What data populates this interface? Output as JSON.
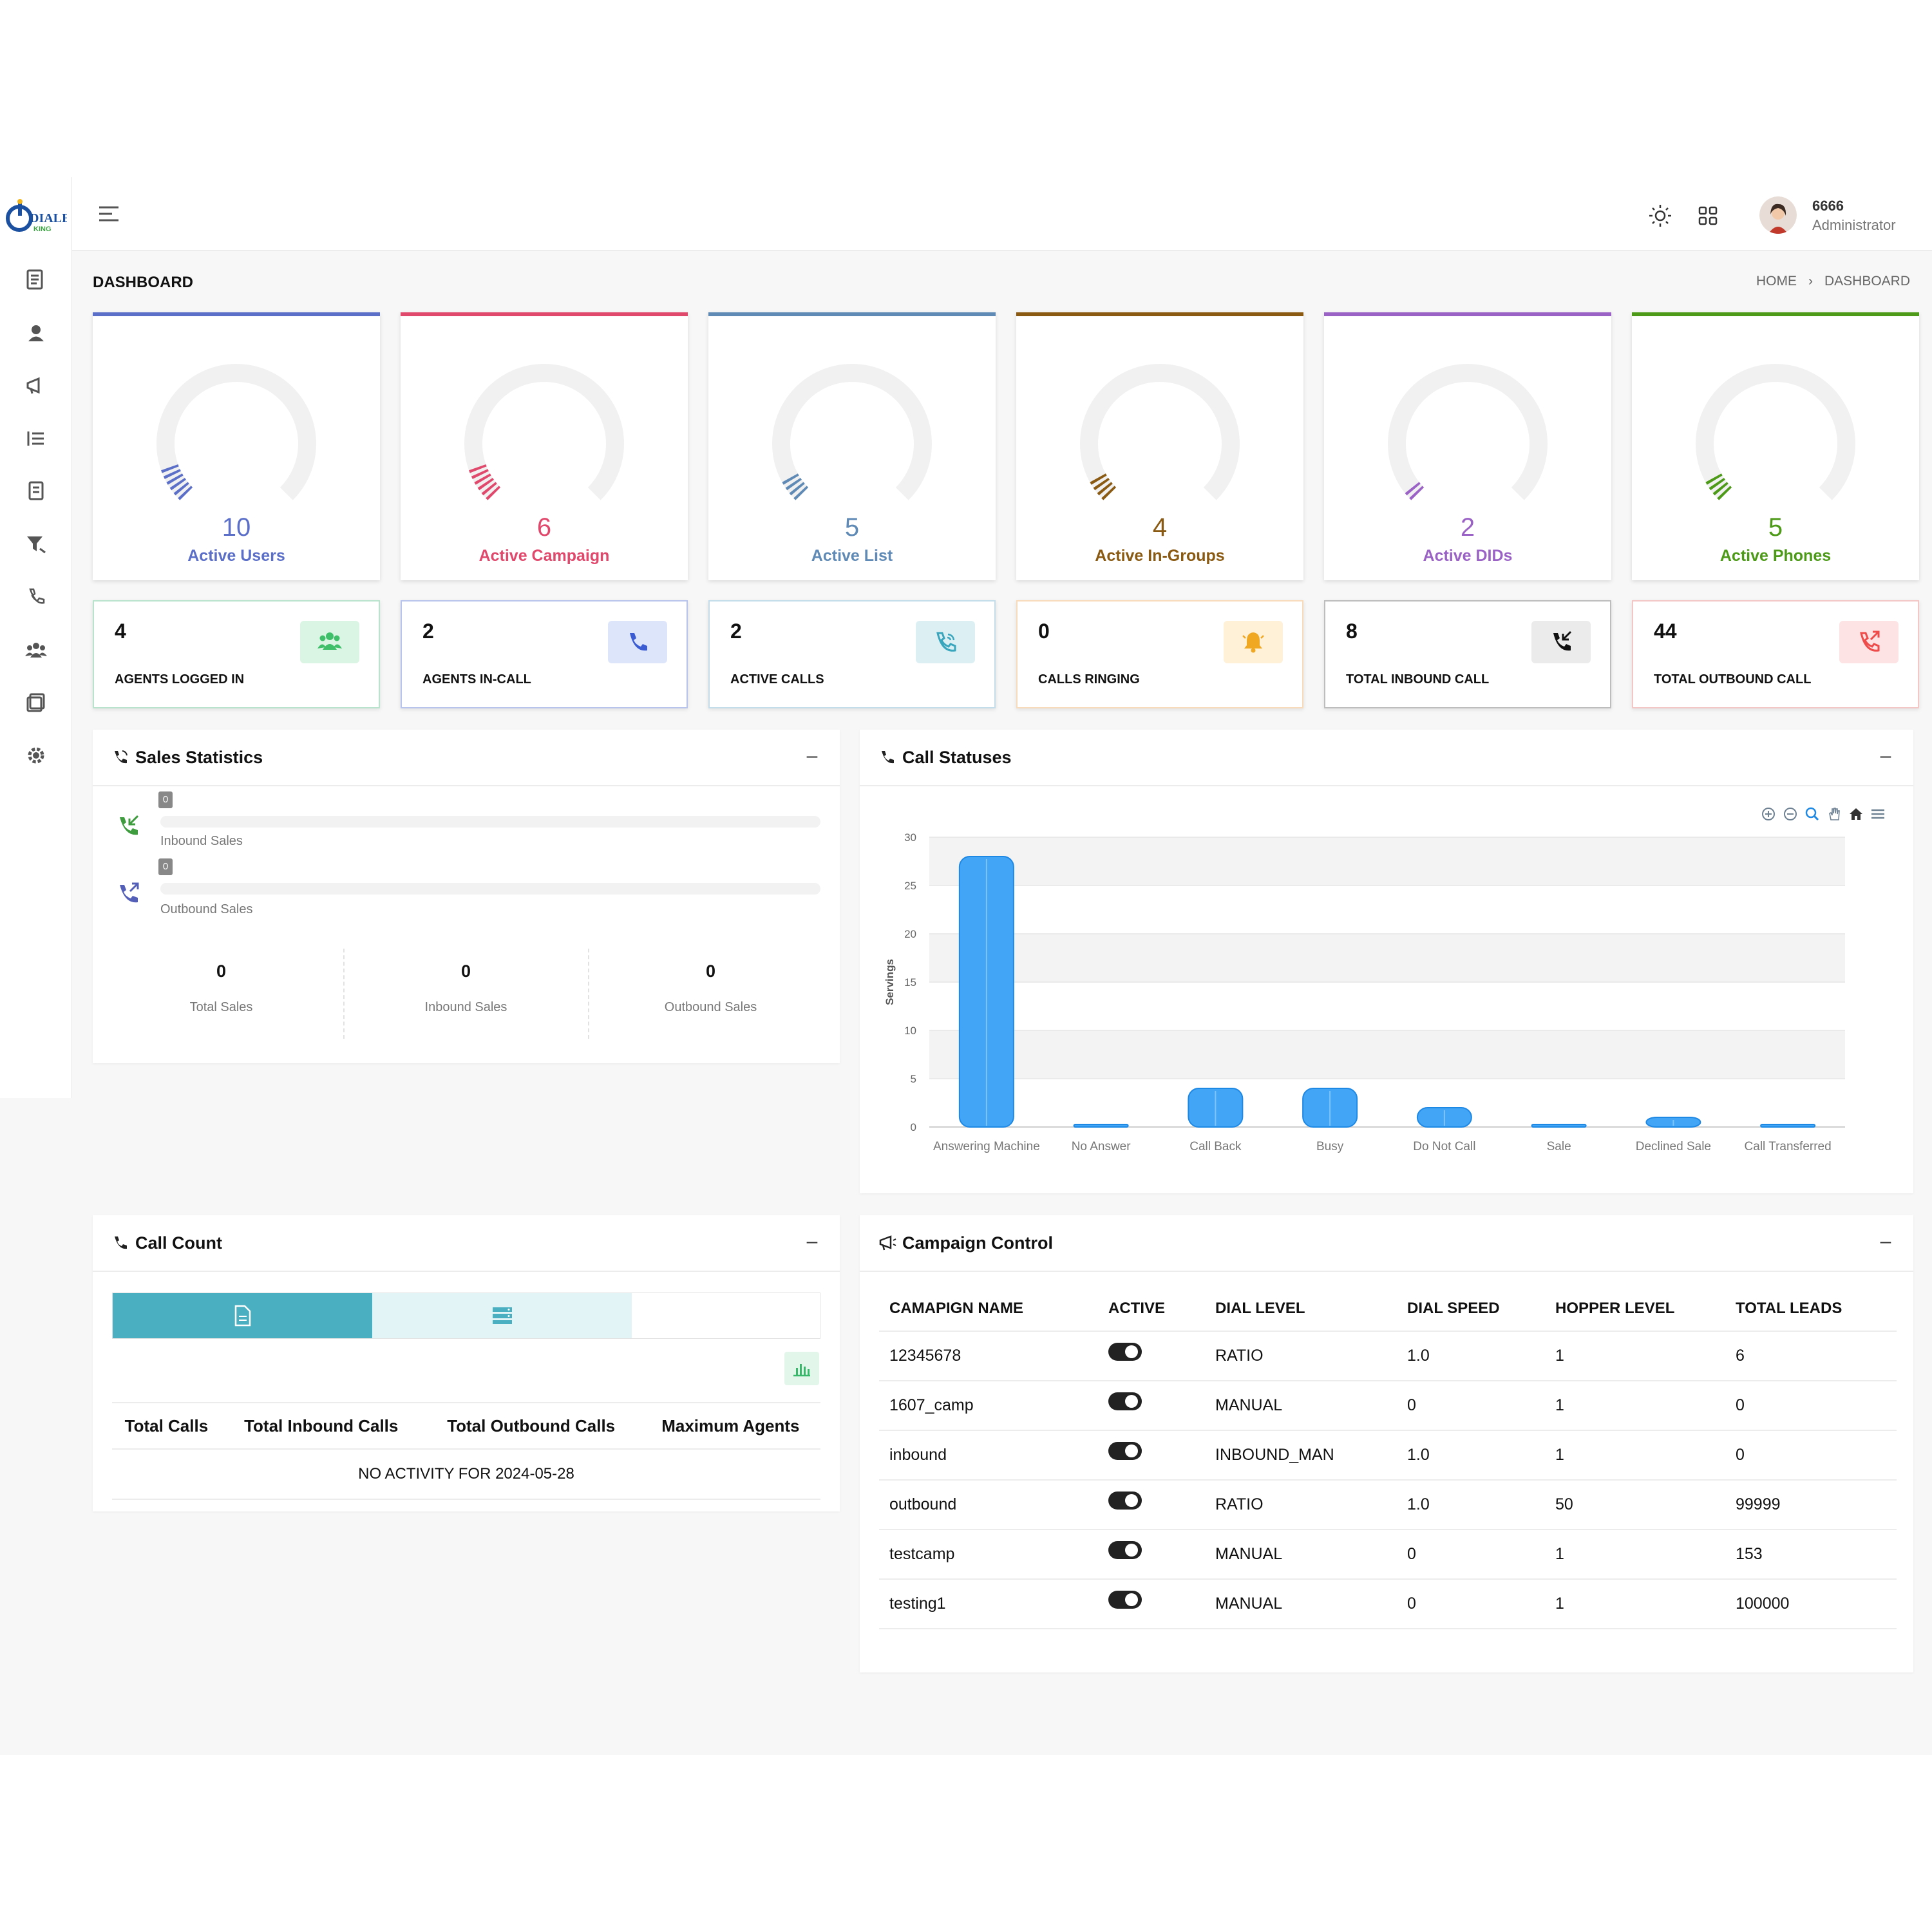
{
  "app": {
    "logo_text": "DIALER",
    "logo_sub": "KING"
  },
  "header": {
    "user_name": "6666",
    "user_role": "Administrator"
  },
  "page": {
    "title": "DASHBOARD",
    "breadcrumb": [
      "HOME",
      "DASHBOARD"
    ]
  },
  "gauges": [
    {
      "value": "10",
      "label": "Active Users",
      "color": "#5b6fc8",
      "level": 0.1
    },
    {
      "value": "6",
      "label": "Active Campaign",
      "color": "#e0486c",
      "level": 0.1
    },
    {
      "value": "5",
      "label": "Active List",
      "color": "#5f8ab5",
      "level": 0.06
    },
    {
      "value": "4",
      "label": "Active In-Groups",
      "color": "#8a5a12",
      "level": 0.06
    },
    {
      "value": "2",
      "label": "Active DIDs",
      "color": "#9b62c6",
      "level": 0.03
    },
    {
      "value": "5",
      "label": "Active Phones",
      "color": "#4c9a17",
      "level": 0.06
    }
  ],
  "stats": [
    {
      "value": "4",
      "label": "AGENTS LOGGED IN",
      "icon": "users-icon",
      "border": "#b9e3cd",
      "icon_bg": "#daf5e4",
      "icon_color": "#3fbf6a"
    },
    {
      "value": "2",
      "label": "AGENTS IN-CALL",
      "icon": "phone-icon",
      "border": "#b8c4ec",
      "icon_bg": "#dde5fb",
      "icon_color": "#3a5bd2"
    },
    {
      "value": "2",
      "label": "ACTIVE CALLS",
      "icon": "phone-volume-icon",
      "border": "#c4ddea",
      "icon_bg": "#dcf0f4",
      "icon_color": "#3aa6bd"
    },
    {
      "value": "0",
      "label": "CALLS RINGING",
      "icon": "bell-icon",
      "border": "#f7dbbb",
      "icon_bg": "#fff0d8",
      "icon_color": "#f0a722"
    },
    {
      "value": "8",
      "label": "TOTAL INBOUND CALL",
      "icon": "phone-incoming-icon",
      "border": "#bdbdbd",
      "icon_bg": "#ebebeb",
      "icon_color": "#111111"
    },
    {
      "value": "44",
      "label": "TOTAL OUTBOUND CALL",
      "icon": "phone-outgoing-icon",
      "border": "#f4c7c7",
      "icon_bg": "#fde3e3",
      "icon_color": "#ee4b4b"
    }
  ],
  "sales": {
    "title": "Sales Statistics",
    "rows": [
      {
        "label": "Inbound Sales",
        "badge": "0",
        "icon": "phone-incoming-icon"
      },
      {
        "label": "Outbound Sales",
        "badge": "0",
        "icon": "phone-outgoing-icon"
      }
    ],
    "columns": [
      {
        "value": "0",
        "label": "Total Sales"
      },
      {
        "value": "0",
        "label": "Inbound Sales"
      },
      {
        "value": "0",
        "label": "Outbound Sales"
      }
    ]
  },
  "status_panel": {
    "title": "Call Statuses"
  },
  "chart_data": {
    "type": "bar",
    "categories": [
      "Answering Machine",
      "No Answer",
      "Call Back",
      "Busy",
      "Do Not Call",
      "Sale",
      "Declined Sale",
      "Call Transferred"
    ],
    "values": [
      28,
      0,
      4,
      4,
      2,
      0,
      1,
      0
    ],
    "ylabel": "Servings",
    "ylim": [
      0,
      30
    ],
    "yticks": [
      0,
      5,
      10,
      15,
      20,
      25,
      30
    ],
    "color": "#42a5f5",
    "grid": true
  },
  "call_count": {
    "title": "Call Count",
    "headers": [
      "Total Calls",
      "Total Inbound Calls",
      "Total Outbound Calls",
      "Maximum Agents"
    ],
    "empty_message": "NO ACTIVITY FOR 2024-05-28"
  },
  "campaigns": {
    "title": "Campaign Control",
    "headers": [
      "CAMAPIGN NAME",
      "ACTIVE",
      "DIAL LEVEL",
      "DIAL SPEED",
      "HOPPER LEVEL",
      "TOTAL LEADS"
    ],
    "rows": [
      {
        "name": "12345678",
        "dial_level": "RATIO",
        "dial_speed": "1.0",
        "hopper": "1",
        "leads": "6"
      },
      {
        "name": "1607_camp",
        "dial_level": "MANUAL",
        "dial_speed": "0",
        "hopper": "1",
        "leads": "0"
      },
      {
        "name": "inbound",
        "dial_level": "INBOUND_MAN",
        "dial_speed": "1.0",
        "hopper": "1",
        "leads": "0"
      },
      {
        "name": "outbound",
        "dial_level": "RATIO",
        "dial_speed": "1.0",
        "hopper": "50",
        "leads": "99999"
      },
      {
        "name": "testcamp",
        "dial_level": "MANUAL",
        "dial_speed": "0",
        "hopper": "1",
        "leads": "153"
      },
      {
        "name": "testing1",
        "dial_level": "MANUAL",
        "dial_speed": "0",
        "hopper": "1",
        "leads": "100000"
      }
    ]
  }
}
